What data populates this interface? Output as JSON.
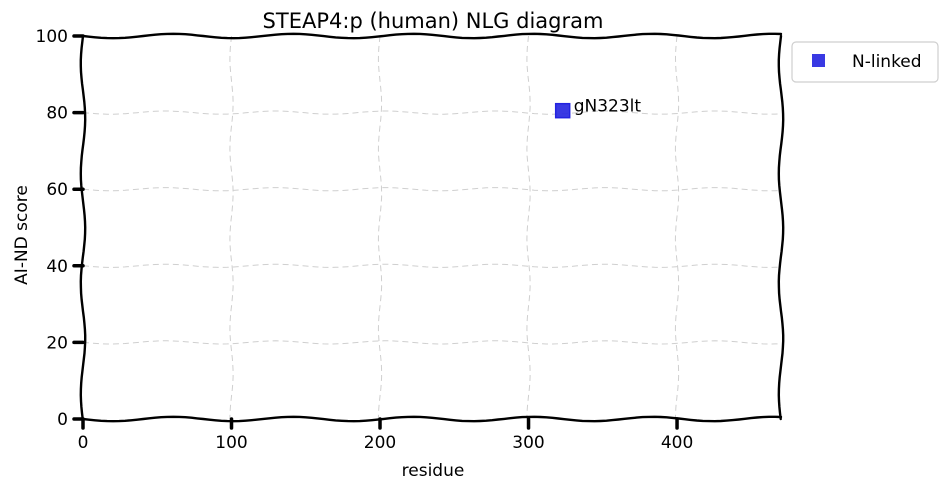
{
  "chart_data": {
    "type": "scatter",
    "title": "STEAP4:p (human) NLG diagram",
    "xlabel": "residue",
    "ylabel": "AI-ND score",
    "xlim": [
      0,
      470
    ],
    "ylim": [
      0,
      100
    ],
    "xticks": [
      0,
      100,
      200,
      300,
      400
    ],
    "yticks": [
      0,
      20,
      40,
      60,
      80,
      100
    ],
    "grid": true,
    "legend_position": "outside-top-right",
    "series": [
      {
        "name": "N-linked",
        "color": "#2323e0",
        "marker": "square",
        "points": [
          {
            "x": 323,
            "y": 80.5,
            "label": "gN323lt"
          }
        ]
      }
    ]
  }
}
